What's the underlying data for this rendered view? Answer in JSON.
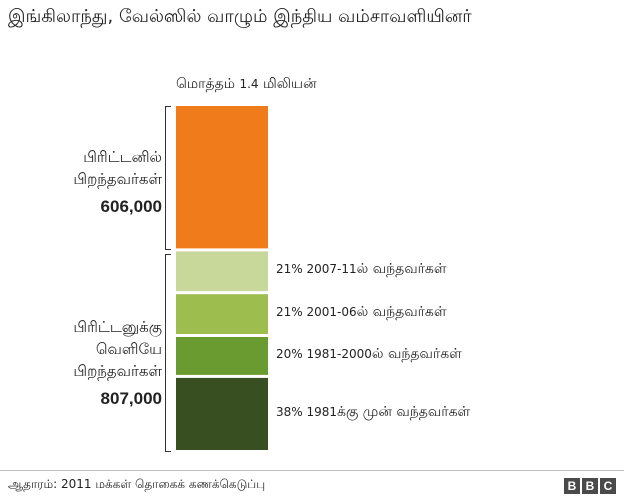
{
  "title": "இங்கிலாந்து, வேல்ஸில் வாழும் இந்திய வம்சாவளியினர்",
  "total": {
    "label": "மொத்தம்",
    "value": "1.4",
    "unit": "மிலியன்"
  },
  "groups": {
    "uk_born": {
      "line1": "பிரிட்டனில்",
      "line2": "பிறந்தவர்கள்",
      "value": "606,000"
    },
    "abroad_born": {
      "line1": "பிரிட்டனுக்கு",
      "line2": "வெளியே",
      "line3": "பிறந்தவர்கள்",
      "value": "807,000"
    }
  },
  "chart_data": {
    "type": "bar",
    "stacked": true,
    "unit": "people",
    "segments": [
      {
        "group": "uk_born",
        "value": 606000,
        "color": "#f07b1b",
        "pct": "",
        "period": "",
        "suffix": ""
      },
      {
        "group": "abroad_born",
        "value": 169470,
        "color": "#c8d89a",
        "pct": "21%",
        "period": "2007-11",
        "suffix": "ல் வந்தவர்கள்"
      },
      {
        "group": "abroad_born",
        "value": 169470,
        "color": "#9dbd4f",
        "pct": "21%",
        "period": "2001-06",
        "suffix": "ல் வந்தவர்கள்"
      },
      {
        "group": "abroad_born",
        "value": 161400,
        "color": "#6a9b30",
        "pct": "20%",
        "period": "1981-2000",
        "suffix": "ல் வந்தவர்கள்"
      },
      {
        "group": "abroad_born",
        "value": 306660,
        "color": "#384f22",
        "pct": "38%",
        "period": "1981",
        "suffix": "க்கு முன் வந்தவர்கள்"
      }
    ]
  },
  "footer": {
    "source": "ஆதாரம்: 2011 மக்கள் தொகைக் கணக்கெடுப்பு",
    "logo": [
      "B",
      "B",
      "C"
    ]
  }
}
